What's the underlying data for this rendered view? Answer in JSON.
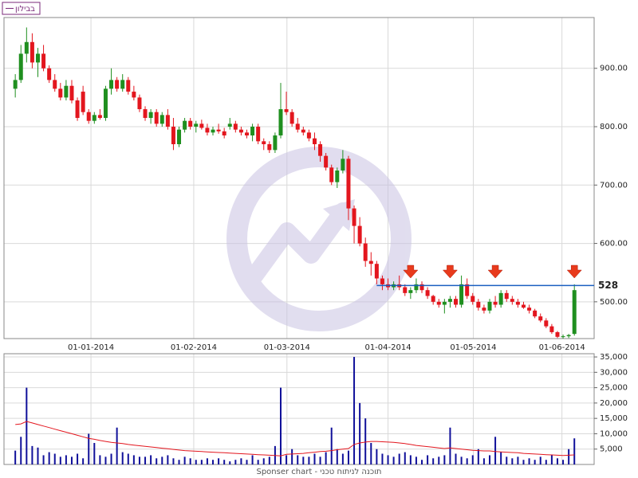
{
  "chart_data": {
    "type": "candlestick",
    "legend": "בבילון",
    "footer": "Sponser chart - תוכנה לניתוח טכני",
    "up_color": "#1f8f1f",
    "down_color": "#e3161e",
    "xlim": [
      -2,
      102.5
    ],
    "xticks": [
      {
        "value": 13.4,
        "label": "01-01-2014"
      },
      {
        "value": 31.6,
        "label": "01-02-2014"
      },
      {
        "value": 48.1,
        "label": "01-03-2014"
      },
      {
        "value": 66,
        "label": "01-04-2014"
      },
      {
        "value": 81.1,
        "label": "01-05-2014"
      },
      {
        "value": 96.8,
        "label": "01-06-2014"
      }
    ],
    "ylim": [
      437,
      987
    ],
    "yticks": [
      {
        "value": 500,
        "label": "500.00"
      },
      {
        "value": 600,
        "label": "600.00"
      },
      {
        "value": 700,
        "label": "700.00"
      },
      {
        "value": 800,
        "label": "800.00"
      },
      {
        "value": 900,
        "label": "900.00"
      }
    ],
    "hline": 528,
    "hline_color": "#1a5fc0",
    "ohlc": [
      [
        865,
        890,
        850,
        880
      ],
      [
        880,
        940,
        875,
        925
      ],
      [
        925,
        970,
        910,
        945
      ],
      [
        945,
        960,
        900,
        910
      ],
      [
        910,
        935,
        885,
        925
      ],
      [
        925,
        940,
        895,
        900
      ],
      [
        900,
        905,
        875,
        880
      ],
      [
        880,
        890,
        860,
        865
      ],
      [
        865,
        875,
        845,
        850
      ],
      [
        850,
        880,
        845,
        870
      ],
      [
        870,
        880,
        840,
        845
      ],
      [
        845,
        850,
        810,
        815
      ],
      [
        860,
        870,
        820,
        825
      ],
      [
        825,
        830,
        805,
        810
      ],
      [
        810,
        825,
        805,
        820
      ],
      [
        820,
        830,
        812,
        815
      ],
      [
        815,
        870,
        810,
        865
      ],
      [
        865,
        900,
        855,
        880
      ],
      [
        880,
        885,
        860,
        865
      ],
      [
        865,
        890,
        860,
        880
      ],
      [
        880,
        885,
        855,
        860
      ],
      [
        860,
        870,
        845,
        850
      ],
      [
        850,
        855,
        825,
        830
      ],
      [
        830,
        835,
        810,
        815
      ],
      [
        815,
        830,
        805,
        825
      ],
      [
        825,
        830,
        800,
        805
      ],
      [
        805,
        825,
        800,
        820
      ],
      [
        820,
        830,
        795,
        800
      ],
      [
        800,
        815,
        760,
        770
      ],
      [
        770,
        800,
        765,
        795
      ],
      [
        795,
        815,
        790,
        810
      ],
      [
        810,
        815,
        795,
        800
      ],
      [
        800,
        810,
        790,
        805
      ],
      [
        805,
        812,
        795,
        798
      ],
      [
        798,
        805,
        785,
        790
      ],
      [
        790,
        800,
        785,
        795
      ],
      [
        795,
        805,
        788,
        792
      ],
      [
        792,
        798,
        780,
        785
      ],
      [
        800,
        815,
        795,
        805
      ],
      [
        805,
        810,
        790,
        795
      ],
      [
        795,
        800,
        785,
        790
      ],
      [
        790,
        795,
        780,
        785
      ],
      [
        785,
        805,
        775,
        800
      ],
      [
        800,
        805,
        770,
        775
      ],
      [
        775,
        780,
        760,
        770
      ],
      [
        770,
        775,
        755,
        760
      ],
      [
        760,
        790,
        755,
        785
      ],
      [
        785,
        875,
        780,
        830
      ],
      [
        830,
        860,
        820,
        825
      ],
      [
        825,
        830,
        800,
        805
      ],
      [
        805,
        815,
        790,
        795
      ],
      [
        795,
        800,
        785,
        790
      ],
      [
        790,
        795,
        775,
        780
      ],
      [
        780,
        790,
        760,
        770
      ],
      [
        770,
        775,
        740,
        750
      ],
      [
        750,
        755,
        725,
        730
      ],
      [
        730,
        735,
        700,
        705
      ],
      [
        705,
        730,
        695,
        725
      ],
      [
        725,
        760,
        720,
        745
      ],
      [
        745,
        750,
        640,
        660
      ],
      [
        660,
        665,
        600,
        630
      ],
      [
        630,
        645,
        595,
        600
      ],
      [
        600,
        610,
        560,
        570
      ],
      [
        570,
        585,
        545,
        565
      ],
      [
        565,
        570,
        530,
        540
      ],
      [
        540,
        545,
        520,
        530
      ],
      [
        530,
        540,
        520,
        525
      ],
      [
        525,
        535,
        520,
        530
      ],
      [
        530,
        545,
        520,
        525
      ],
      [
        525,
        530,
        510,
        515
      ],
      [
        515,
        525,
        505,
        520
      ],
      [
        520,
        540,
        515,
        530
      ],
      [
        530,
        535,
        515,
        520
      ],
      [
        520,
        525,
        505,
        510
      ],
      [
        510,
        512,
        495,
        500
      ],
      [
        500,
        505,
        490,
        495
      ],
      [
        495,
        505,
        480,
        500
      ],
      [
        500,
        510,
        490,
        505
      ],
      [
        505,
        510,
        490,
        495
      ],
      [
        495,
        545,
        490,
        530
      ],
      [
        530,
        540,
        505,
        510
      ],
      [
        510,
        515,
        495,
        500
      ],
      [
        500,
        505,
        485,
        490
      ],
      [
        490,
        495,
        480,
        485
      ],
      [
        485,
        505,
        480,
        500
      ],
      [
        500,
        510,
        490,
        495
      ],
      [
        495,
        520,
        490,
        515
      ],
      [
        515,
        520,
        500,
        505
      ],
      [
        505,
        510,
        495,
        500
      ],
      [
        500,
        505,
        490,
        495
      ],
      [
        495,
        500,
        488,
        490
      ],
      [
        490,
        495,
        480,
        485
      ],
      [
        485,
        488,
        472,
        475
      ],
      [
        475,
        480,
        465,
        468
      ],
      [
        468,
        472,
        455,
        458
      ],
      [
        458,
        462,
        445,
        448
      ],
      [
        448,
        450,
        438,
        440
      ],
      [
        440,
        444,
        437,
        441
      ],
      [
        441,
        445,
        438,
        443
      ],
      [
        445,
        530,
        442,
        520
      ]
    ],
    "volume_color": "#10109a",
    "ma_color": "#e3161e",
    "vlim": [
      0,
      36050
    ],
    "vticks": [
      {
        "value": 5000,
        "label": "5,000"
      },
      {
        "value": 10000,
        "label": "10,000"
      },
      {
        "value": 15000,
        "label": "15,000"
      },
      {
        "value": 20000,
        "label": "20,000"
      },
      {
        "value": 25000,
        "label": "25,000"
      },
      {
        "value": 30000,
        "label": "30,000"
      },
      {
        "value": 35000,
        "label": "35,000"
      }
    ],
    "volume": [
      4500,
      9000,
      25000,
      6000,
      5500,
      3000,
      4000,
      3500,
      2500,
      3000,
      2500,
      3500,
      2000,
      10000,
      7000,
      3000,
      2500,
      3500,
      12000,
      4000,
      3500,
      3000,
      2500,
      2500,
      3000,
      2000,
      2500,
      3000,
      2000,
      1500,
      2500,
      2000,
      1500,
      1500,
      2000,
      1500,
      2000,
      1500,
      1000,
      1500,
      2000,
      1500,
      3000,
      1500,
      2000,
      2500,
      6000,
      25000,
      3000,
      5000,
      3000,
      2500,
      2500,
      3500,
      2500,
      4000,
      12000,
      5000,
      3500,
      4500,
      35000,
      20000,
      15000,
      7000,
      5000,
      3500,
      3000,
      2500,
      3500,
      4000,
      3000,
      2500,
      1500,
      3000,
      2000,
      2500,
      3000,
      12000,
      3500,
      2500,
      2000,
      3000,
      5000,
      2000,
      3000,
      9000,
      4000,
      2500,
      2000,
      2500,
      1500,
      2000,
      1500,
      2500,
      1500,
      3000,
      2000,
      1500,
      5000,
      8500
    ],
    "volume_ma": [
      13000,
      13200,
      14000,
      13500,
      13000,
      12500,
      12000,
      11500,
      11000,
      10500,
      10000,
      9500,
      9000,
      8500,
      8200,
      7800,
      7500,
      7200,
      7000,
      6800,
      6500,
      6300,
      6100,
      5900,
      5700,
      5500,
      5300,
      5100,
      4900,
      4700,
      4500,
      4400,
      4300,
      4200,
      4100,
      4000,
      3900,
      3800,
      3700,
      3600,
      3500,
      3400,
      3300,
      3200,
      3100,
      3000,
      2900,
      2800,
      3300,
      3400,
      3500,
      3600,
      3800,
      4000,
      4200,
      4300,
      4500,
      4800,
      5000,
      5200,
      6500,
      7000,
      7300,
      7500,
      7500,
      7400,
      7300,
      7200,
      7000,
      6800,
      6500,
      6200,
      6000,
      5800,
      5600,
      5400,
      5200,
      5400,
      5200,
      5000,
      4800,
      4600,
      4500,
      4400,
      4400,
      4200,
      4100,
      4000,
      3900,
      3800,
      3600,
      3500,
      3400,
      3300,
      3200,
      3100,
      3000,
      2900,
      3000,
      3100
    ]
  }
}
